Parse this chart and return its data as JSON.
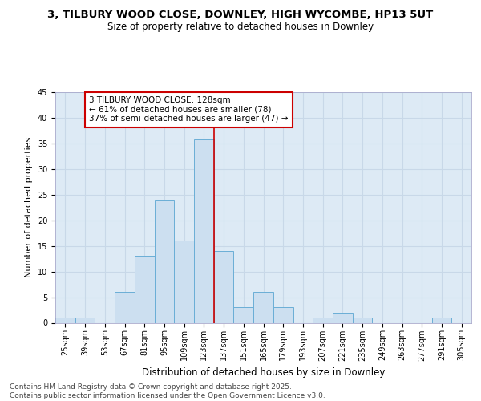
{
  "title": "3, TILBURY WOOD CLOSE, DOWNLEY, HIGH WYCOMBE, HP13 5UT",
  "subtitle": "Size of property relative to detached houses in Downley",
  "xlabel": "Distribution of detached houses by size in Downley",
  "ylabel": "Number of detached properties",
  "bin_labels": [
    "25sqm",
    "39sqm",
    "53sqm",
    "67sqm",
    "81sqm",
    "95sqm",
    "109sqm",
    "123sqm",
    "137sqm",
    "151sqm",
    "165sqm",
    "179sqm",
    "193sqm",
    "207sqm",
    "221sqm",
    "235sqm",
    "249sqm",
    "263sqm",
    "277sqm",
    "291sqm",
    "305sqm"
  ],
  "bar_values": [
    1,
    1,
    0,
    6,
    13,
    24,
    16,
    36,
    14,
    3,
    6,
    3,
    0,
    1,
    2,
    1,
    0,
    0,
    0,
    1,
    0
  ],
  "bar_color": "#ccdff0",
  "bar_edge_color": "#6aaed6",
  "grid_color": "#c8d8e8",
  "background_color": "#ddeaf5",
  "annotation_box_text": "3 TILBURY WOOD CLOSE: 128sqm\n← 61% of detached houses are smaller (78)\n37% of semi-detached houses are larger (47) →",
  "annotation_box_color": "#ffffff",
  "annotation_box_edge_color": "#cc0000",
  "vline_color": "#cc0000",
  "vline_pos": 7.5,
  "ylim": [
    0,
    45
  ],
  "yticks": [
    0,
    5,
    10,
    15,
    20,
    25,
    30,
    35,
    40,
    45
  ],
  "footer_text": "Contains HM Land Registry data © Crown copyright and database right 2025.\nContains public sector information licensed under the Open Government Licence v3.0.",
  "title_fontsize": 9.5,
  "subtitle_fontsize": 8.5,
  "xlabel_fontsize": 8.5,
  "ylabel_fontsize": 8,
  "tick_fontsize": 7,
  "annotation_fontsize": 7.5,
  "footer_fontsize": 6.5
}
